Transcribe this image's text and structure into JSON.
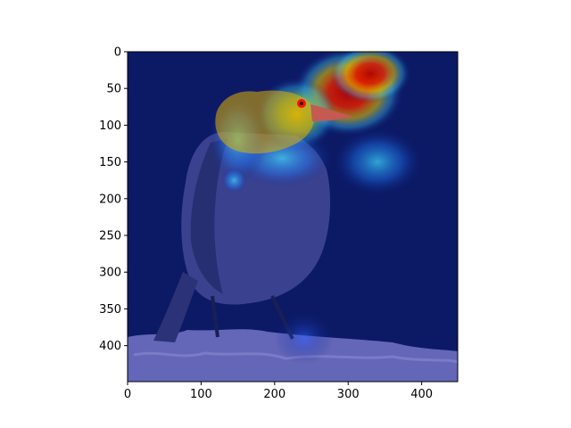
{
  "chart_data": {
    "type": "heatmap",
    "title": "",
    "xlabel": "",
    "ylabel": "",
    "image_size": [
      449,
      449
    ],
    "xlim": [
      0,
      449
    ],
    "ylim": [
      449,
      0
    ],
    "x_ticks": [
      0,
      100,
      200,
      300,
      400
    ],
    "y_ticks": [
      0,
      50,
      100,
      150,
      200,
      250,
      300,
      350,
      400
    ],
    "colormap": "jet",
    "overlay": "saliency heatmap (jet) over photo of a dark bird with a red head perched on a rock",
    "hotspots": [
      {
        "name": "peak-above-beak",
        "x": 300,
        "y": 55,
        "rx": 75,
        "ry": 60,
        "intensity": 1.0
      },
      {
        "name": "top-right",
        "x": 330,
        "y": 30,
        "rx": 55,
        "ry": 40,
        "intensity": 0.85
      },
      {
        "name": "head",
        "x": 230,
        "y": 85,
        "rx": 55,
        "ry": 50,
        "intensity": 0.75
      },
      {
        "name": "neck",
        "x": 210,
        "y": 145,
        "rx": 70,
        "ry": 40,
        "intensity": 0.55
      },
      {
        "name": "right-lobe",
        "x": 340,
        "y": 150,
        "rx": 60,
        "ry": 45,
        "intensity": 0.6
      },
      {
        "name": "left-edge",
        "x": 150,
        "y": 120,
        "rx": 40,
        "ry": 60,
        "intensity": 0.4
      },
      {
        "name": "small-blob",
        "x": 145,
        "y": 175,
        "rx": 18,
        "ry": 18,
        "intensity": 0.4
      },
      {
        "name": "feet",
        "x": 240,
        "y": 390,
        "rx": 40,
        "ry": 35,
        "intensity": 0.25
      }
    ]
  }
}
